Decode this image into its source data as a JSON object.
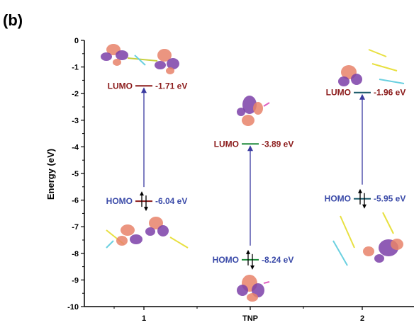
{
  "panel_label": "(b)",
  "chart_data": {
    "type": "energy-level-diagram",
    "ylabel": "Energy (eV)",
    "ylim": [
      -10,
      0
    ],
    "yticks": [
      "0",
      "-1",
      "-2",
      "-3",
      "-4",
      "-5",
      "-6",
      "-7",
      "-8",
      "-9",
      "-10"
    ],
    "categories": [
      "1",
      "TNP",
      "2"
    ],
    "levels": [
      {
        "category": "1",
        "lumo": -1.71,
        "homo": -6.04,
        "lumo_text": "-1.71 eV",
        "homo_text": "-6.04 eV"
      },
      {
        "category": "TNP",
        "lumo": -3.89,
        "homo": -8.24,
        "lumo_text": "-3.89 eV",
        "homo_text": "-8.24 eV"
      },
      {
        "category": "2",
        "lumo": -1.96,
        "homo": -5.95,
        "lumo_text": "-1.96 eV",
        "homo_text": "-5.95 eV"
      }
    ],
    "lumo_label": "LUMO",
    "homo_label": "HOMO",
    "colors": {
      "lumo": "#8b1a1a",
      "homo": "#3a4aa8",
      "arrow": "#3a3aa0",
      "tnp_level": "#1e8a3a",
      "orbital_pos": "#e8836a",
      "orbital_neg": "#7b3fa8"
    }
  }
}
